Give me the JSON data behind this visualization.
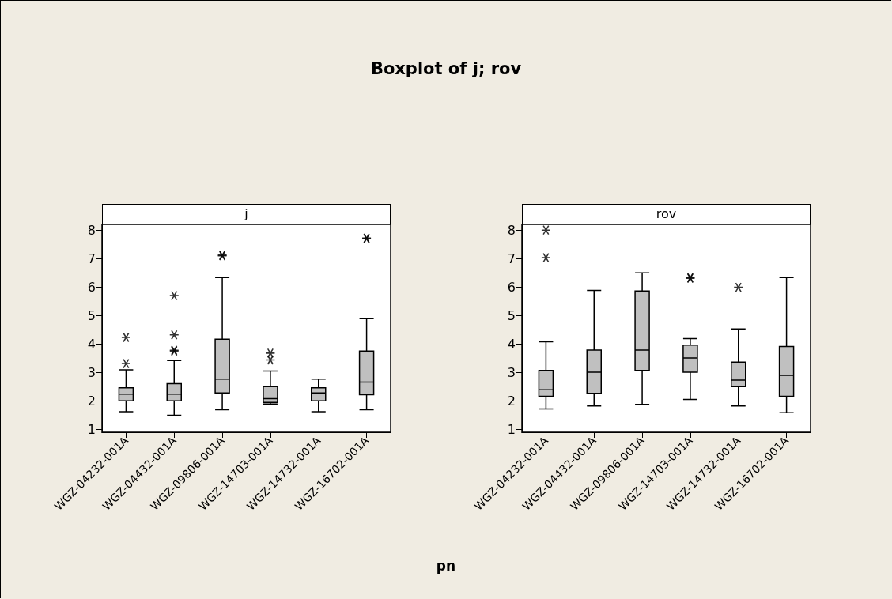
{
  "chart_data": [
    {
      "type": "box",
      "title": "Boxplot of j; rov",
      "subtitle": "j",
      "xlabel": "pn",
      "categories": [
        "WGZ-04232-001A",
        "WGZ-04432-001A",
        "WGZ-09806-001A",
        "WGZ-14703-001A",
        "WGZ-14732-001A",
        "WGZ-16702-001A"
      ],
      "ylim": [
        0.9,
        8.2
      ],
      "yticks": [
        1,
        2,
        3,
        4,
        5,
        6,
        7,
        8
      ],
      "boxes": [
        {
          "low": 1.62,
          "q1": 2.0,
          "median": 2.24,
          "q3": 2.46,
          "high": 3.09,
          "outliers": [
            3.31,
            4.23
          ]
        },
        {
          "low": 1.5,
          "q1": 2.0,
          "median": 2.24,
          "q3": 2.61,
          "high": 3.42,
          "outliers": [
            3.75,
            3.78,
            4.32,
            5.7
          ]
        },
        {
          "low": 1.69,
          "q1": 2.28,
          "median": 2.77,
          "q3": 4.17,
          "high": 6.33,
          "outliers": [
            7.1,
            7.12
          ]
        },
        {
          "low": 1.89,
          "q1": 1.95,
          "median": 2.08,
          "q3": 2.5,
          "high": 3.05,
          "outliers": [
            3.44,
            3.68
          ]
        },
        {
          "low": 1.62,
          "q1": 2.0,
          "median": 2.28,
          "q3": 2.46,
          "high": 2.77
        },
        {
          "low": 1.69,
          "q1": 2.22,
          "median": 2.66,
          "q3": 3.75,
          "high": 4.89,
          "outliers": [
            7.7,
            7.72
          ]
        }
      ]
    },
    {
      "type": "box",
      "subtitle": "rov",
      "categories": [
        "WGZ-04232-001A",
        "WGZ-04432-001A",
        "WGZ-09806-001A",
        "WGZ-14703-001A",
        "WGZ-14732-001A",
        "WGZ-16702-001A"
      ],
      "ylim": [
        0.9,
        8.2
      ],
      "yticks": [
        1,
        2,
        3,
        4,
        5,
        6,
        7,
        8
      ],
      "boxes": [
        {
          "low": 1.72,
          "q1": 2.16,
          "median": 2.39,
          "q3": 3.07,
          "high": 4.08,
          "outliers": [
            7.03,
            8.0
          ]
        },
        {
          "low": 1.82,
          "q1": 2.27,
          "median": 3.01,
          "q3": 3.79,
          "high": 5.88
        },
        {
          "low": 1.88,
          "q1": 3.07,
          "median": 3.79,
          "q3": 5.86,
          "high": 6.5
        },
        {
          "low": 2.05,
          "q1": 3.01,
          "median": 3.51,
          "q3": 3.96,
          "high": 4.19,
          "outliers": [
            6.31,
            6.33
          ]
        },
        {
          "low": 1.82,
          "q1": 2.5,
          "median": 2.73,
          "q3": 3.36,
          "high": 4.53,
          "outliers": [
            5.99
          ]
        },
        {
          "low": 1.59,
          "q1": 2.16,
          "median": 2.9,
          "q3": 3.91,
          "high": 6.33
        }
      ]
    }
  ]
}
